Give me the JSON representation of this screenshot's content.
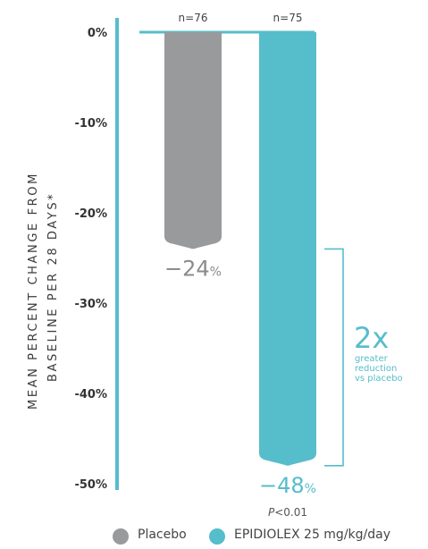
{
  "chart_data": {
    "type": "bar",
    "ylabel_lines": [
      "MEAN PERCENT CHANGE FROM",
      "BASELINE PER 28 DAYS*"
    ],
    "ylim": [
      -50,
      0
    ],
    "yticks": [
      "0%",
      "-10%",
      "-20%",
      "-30%",
      "-40%",
      "-50%"
    ],
    "categories": [
      "Placebo",
      "EPIDIOLEX 25 mg/kg/day"
    ],
    "n_labels": [
      "n=76",
      "n=75"
    ],
    "values": [
      -24,
      -48
    ],
    "value_labels": [
      {
        "number": "−24",
        "unit": "%"
      },
      {
        "number": "−48",
        "unit": "%"
      }
    ],
    "p_value": {
      "prefix": "P",
      "rest": "<0.01"
    },
    "colors": {
      "placebo": "#999a9c",
      "epidiolex": "#56bdcb",
      "axis": "#56bdcb",
      "bracket": "#56bdcb"
    },
    "comparison": {
      "big": "2x",
      "line1": "greater",
      "line2": "reduction",
      "line3": "vs placebo"
    },
    "legend": [
      {
        "label": "Placebo",
        "color": "#999a9c"
      },
      {
        "label": "EPIDIOLEX 25 mg/kg/day",
        "color": "#56bdcb"
      }
    ]
  }
}
